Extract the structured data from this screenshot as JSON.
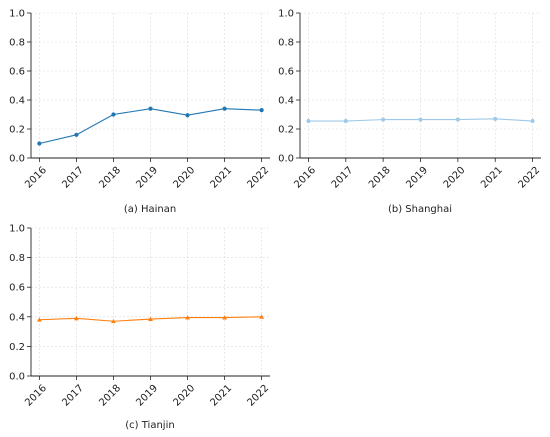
{
  "chart_data": [
    {
      "type": "line",
      "caption": "(a) Hainan",
      "x": [
        "2016",
        "2017",
        "2018",
        "2019",
        "2020",
        "2021",
        "2022"
      ],
      "series": [
        {
          "values": [
            0.1,
            0.16,
            0.3,
            0.34,
            0.295,
            0.34,
            0.33
          ],
          "color": "#1f77b4",
          "marker": "circle"
        }
      ],
      "ylim": [
        0,
        1.0
      ],
      "yticks": [
        "0.0",
        "0.2",
        "0.4",
        "0.6",
        "0.8",
        "1.0"
      ],
      "grid": true
    },
    {
      "type": "line",
      "caption": "(b) Shanghai",
      "x": [
        "2016",
        "2017",
        "2018",
        "2019",
        "2020",
        "2021",
        "2022"
      ],
      "series": [
        {
          "values": [
            0.255,
            0.255,
            0.265,
            0.265,
            0.265,
            0.27,
            0.255
          ],
          "color": "#9ec9e8",
          "marker": "circle"
        }
      ],
      "ylim": [
        0,
        1.0
      ],
      "yticks": [
        "0.0",
        "0.2",
        "0.4",
        "0.6",
        "0.8",
        "1.0"
      ],
      "grid": true
    },
    {
      "type": "line",
      "caption": "(c) Tianjin",
      "x": [
        "2016",
        "2017",
        "2018",
        "2019",
        "2020",
        "2021",
        "2022"
      ],
      "series": [
        {
          "values": [
            0.38,
            0.39,
            0.37,
            0.385,
            0.395,
            0.395,
            0.4
          ],
          "color": "#ff7f0e",
          "marker": "triangle"
        }
      ],
      "ylim": [
        0,
        1.0
      ],
      "yticks": [
        "0.0",
        "0.2",
        "0.4",
        "0.6",
        "0.8",
        "1.0"
      ],
      "grid": true
    }
  ]
}
